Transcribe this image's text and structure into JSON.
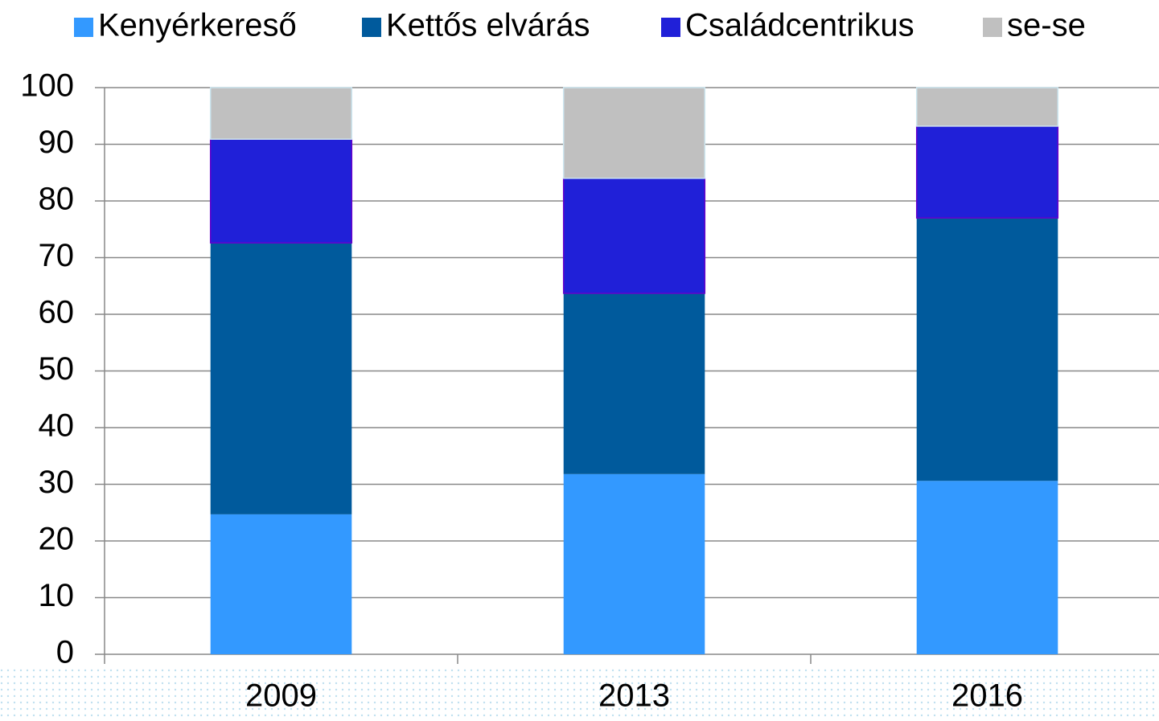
{
  "chart_data": {
    "type": "stacked_bar",
    "categories": [
      "2009",
      "2013",
      "2016"
    ],
    "series": [
      {
        "name": "Kenyérkereső",
        "color": "#3399ff",
        "values": [
          24.7,
          31.8,
          30.6
        ]
      },
      {
        "name": "Kettős elvárás",
        "color": "#005a9c",
        "values": [
          47.9,
          31.9,
          46.4
        ]
      },
      {
        "name": "Családcentrikus",
        "color": "#2020d8",
        "values": [
          18.3,
          20.3,
          16.2
        ]
      },
      {
        "name": "se-se",
        "color": "#c0c0c0",
        "values": [
          9.1,
          16.0,
          6.8
        ]
      }
    ],
    "ylim": [
      0,
      100
    ],
    "yticks": [
      0,
      10,
      20,
      30,
      40,
      50,
      60,
      70,
      80,
      90,
      100
    ],
    "grid": true,
    "legend": "top"
  }
}
